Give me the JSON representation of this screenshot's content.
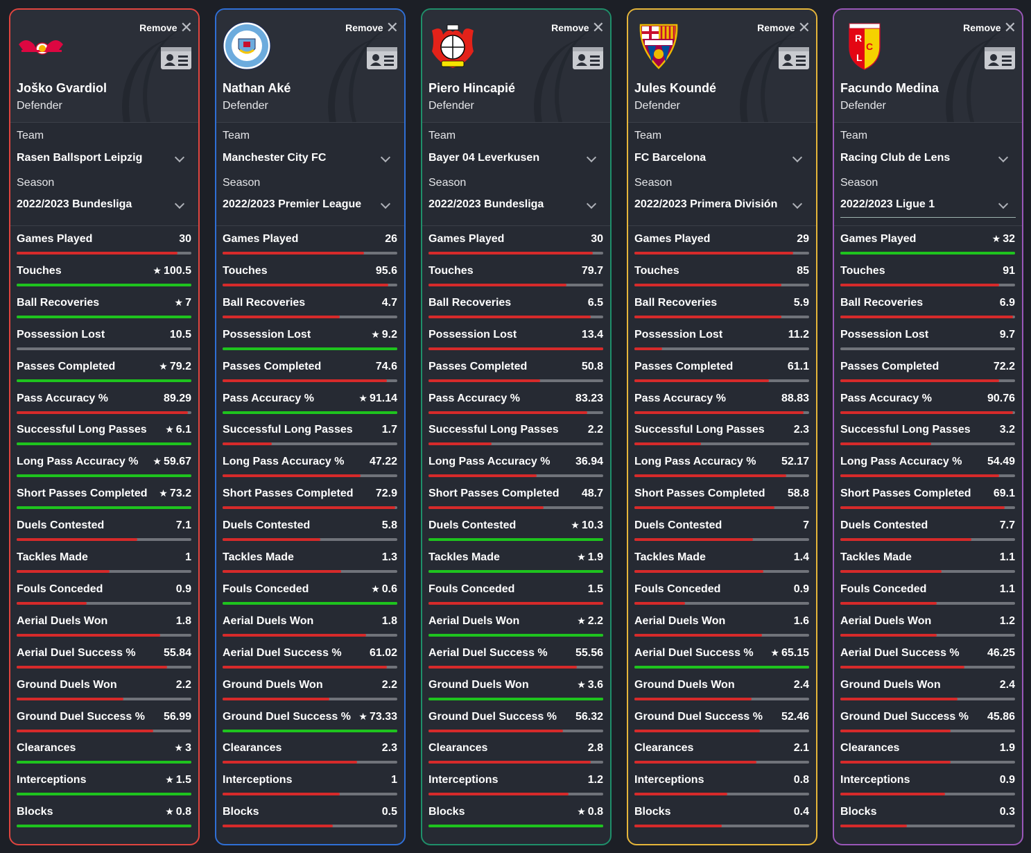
{
  "ui": {
    "remove_label": "Remove",
    "team_label": "Team",
    "season_label": "Season",
    "colors": {
      "best": "#1ec31e",
      "other": "#d62a2a",
      "track": "#70737a"
    }
  },
  "stat_labels": [
    "Games Played",
    "Touches",
    "Ball Recoveries",
    "Possession Lost",
    "Passes Completed",
    "Pass Accuracy %",
    "Successful Long Passes",
    "Long Pass Accuracy %",
    "Short Passes Completed",
    "Duels Contested",
    "Tackles Made",
    "Fouls Conceded",
    "Aerial Duels Won",
    "Aerial Duel Success %",
    "Ground Duels Won",
    "Ground Duel Success %",
    "Clearances",
    "Interceptions",
    "Blocks"
  ],
  "players": [
    {
      "name": "Joško Gvardiol",
      "position": "Defender",
      "team": "Rasen Ballsport Leipzig",
      "season": "2022/2023 Bundesliga",
      "border_color": "#e0453f",
      "logo": "rb-leipzig-logo",
      "stats": [
        {
          "value": "30",
          "star": false,
          "bar": 0.92
        },
        {
          "value": "100.5",
          "star": true,
          "bar": 1.0
        },
        {
          "value": "7",
          "star": true,
          "bar": 1.0
        },
        {
          "value": "10.5",
          "star": false,
          "bar": 0.0
        },
        {
          "value": "79.2",
          "star": true,
          "bar": 1.0
        },
        {
          "value": "89.29",
          "star": false,
          "bar": 0.98
        },
        {
          "value": "6.1",
          "star": true,
          "bar": 1.0
        },
        {
          "value": "59.67",
          "star": true,
          "bar": 1.0
        },
        {
          "value": "73.2",
          "star": true,
          "bar": 1.0
        },
        {
          "value": "7.1",
          "star": false,
          "bar": 0.69
        },
        {
          "value": "1",
          "star": false,
          "bar": 0.53
        },
        {
          "value": "0.9",
          "star": false,
          "bar": 0.4
        },
        {
          "value": "1.8",
          "star": false,
          "bar": 0.82
        },
        {
          "value": "55.84",
          "star": false,
          "bar": 0.86
        },
        {
          "value": "2.2",
          "star": false,
          "bar": 0.61
        },
        {
          "value": "56.99",
          "star": false,
          "bar": 0.78
        },
        {
          "value": "3",
          "star": true,
          "bar": 1.0
        },
        {
          "value": "1.5",
          "star": true,
          "bar": 1.0
        },
        {
          "value": "0.8",
          "star": true,
          "bar": 1.0
        }
      ]
    },
    {
      "name": "Nathan Aké",
      "position": "Defender",
      "team": "Manchester City FC",
      "season": "2022/2023 Premier League",
      "border_color": "#2f6fd6",
      "logo": "manchester-city-logo",
      "stats": [
        {
          "value": "26",
          "star": false,
          "bar": 0.81
        },
        {
          "value": "95.6",
          "star": false,
          "bar": 0.95
        },
        {
          "value": "4.7",
          "star": false,
          "bar": 0.67
        },
        {
          "value": "9.2",
          "star": true,
          "bar": 1.0
        },
        {
          "value": "74.6",
          "star": false,
          "bar": 0.94
        },
        {
          "value": "91.14",
          "star": true,
          "bar": 1.0
        },
        {
          "value": "1.7",
          "star": false,
          "bar": 0.28
        },
        {
          "value": "47.22",
          "star": false,
          "bar": 0.79
        },
        {
          "value": "72.9",
          "star": false,
          "bar": 0.99
        },
        {
          "value": "5.8",
          "star": false,
          "bar": 0.56
        },
        {
          "value": "1.3",
          "star": false,
          "bar": 0.68
        },
        {
          "value": "0.6",
          "star": true,
          "bar": 1.0
        },
        {
          "value": "1.8",
          "star": false,
          "bar": 0.82
        },
        {
          "value": "61.02",
          "star": false,
          "bar": 0.94
        },
        {
          "value": "2.2",
          "star": false,
          "bar": 0.61
        },
        {
          "value": "73.33",
          "star": true,
          "bar": 1.0
        },
        {
          "value": "2.3",
          "star": false,
          "bar": 0.77
        },
        {
          "value": "1",
          "star": false,
          "bar": 0.67
        },
        {
          "value": "0.5",
          "star": false,
          "bar": 0.63
        }
      ]
    },
    {
      "name": "Piero Hincapié",
      "position": "Defender",
      "team": "Bayer 04 Leverkusen",
      "season": "2022/2023 Bundesliga",
      "border_color": "#1f8f6a",
      "logo": "bayer-leverkusen-logo",
      "stats": [
        {
          "value": "30",
          "star": false,
          "bar": 0.94
        },
        {
          "value": "79.7",
          "star": false,
          "bar": 0.79
        },
        {
          "value": "6.5",
          "star": false,
          "bar": 0.93
        },
        {
          "value": "13.4",
          "star": false,
          "bar": 1.0
        },
        {
          "value": "50.8",
          "star": false,
          "bar": 0.64
        },
        {
          "value": "83.23",
          "star": false,
          "bar": 0.91
        },
        {
          "value": "2.2",
          "star": false,
          "bar": 0.36
        },
        {
          "value": "36.94",
          "star": false,
          "bar": 0.62
        },
        {
          "value": "48.7",
          "star": false,
          "bar": 0.66
        },
        {
          "value": "10.3",
          "star": true,
          "bar": 1.0
        },
        {
          "value": "1.9",
          "star": true,
          "bar": 1.0
        },
        {
          "value": "1.5",
          "star": false,
          "bar": 1.0
        },
        {
          "value": "2.2",
          "star": true,
          "bar": 1.0
        },
        {
          "value": "55.56",
          "star": false,
          "bar": 0.85
        },
        {
          "value": "3.6",
          "star": true,
          "bar": 1.0
        },
        {
          "value": "56.32",
          "star": false,
          "bar": 0.77
        },
        {
          "value": "2.8",
          "star": false,
          "bar": 0.93
        },
        {
          "value": "1.2",
          "star": false,
          "bar": 0.8
        },
        {
          "value": "0.8",
          "star": true,
          "bar": 1.0
        }
      ]
    },
    {
      "name": "Jules Koundé",
      "position": "Defender",
      "team": "FC Barcelona",
      "season": "2022/2023 Primera División",
      "border_color": "#e6b63a",
      "logo": "fc-barcelona-logo",
      "stats": [
        {
          "value": "29",
          "star": false,
          "bar": 0.91
        },
        {
          "value": "85",
          "star": false,
          "bar": 0.84
        },
        {
          "value": "5.9",
          "star": false,
          "bar": 0.84
        },
        {
          "value": "11.2",
          "star": false,
          "bar": 0.16
        },
        {
          "value": "61.1",
          "star": false,
          "bar": 0.77
        },
        {
          "value": "88.83",
          "star": false,
          "bar": 0.97
        },
        {
          "value": "2.3",
          "star": false,
          "bar": 0.38
        },
        {
          "value": "52.17",
          "star": false,
          "bar": 0.87
        },
        {
          "value": "58.8",
          "star": false,
          "bar": 0.8
        },
        {
          "value": "7",
          "star": false,
          "bar": 0.68
        },
        {
          "value": "1.4",
          "star": false,
          "bar": 0.74
        },
        {
          "value": "0.9",
          "star": false,
          "bar": 0.29
        },
        {
          "value": "1.6",
          "star": false,
          "bar": 0.73
        },
        {
          "value": "65.15",
          "star": true,
          "bar": 1.0
        },
        {
          "value": "2.4",
          "star": false,
          "bar": 0.67
        },
        {
          "value": "52.46",
          "star": false,
          "bar": 0.72
        },
        {
          "value": "2.1",
          "star": false,
          "bar": 0.7
        },
        {
          "value": "0.8",
          "star": false,
          "bar": 0.53
        },
        {
          "value": "0.4",
          "star": false,
          "bar": 0.5
        }
      ]
    },
    {
      "name": "Facundo Medina",
      "position": "Defender",
      "team": "Racing Club de Lens",
      "season": "2022/2023 Ligue 1",
      "border_color": "#9a57b8",
      "logo": "rc-lens-logo",
      "stats": [
        {
          "value": "32",
          "star": true,
          "bar": 1.0
        },
        {
          "value": "91",
          "star": false,
          "bar": 0.91
        },
        {
          "value": "6.9",
          "star": false,
          "bar": 0.99
        },
        {
          "value": "9.7",
          "star": false,
          "bar": 0.0
        },
        {
          "value": "72.2",
          "star": false,
          "bar": 0.91
        },
        {
          "value": "90.76",
          "star": false,
          "bar": 0.99
        },
        {
          "value": "3.2",
          "star": false,
          "bar": 0.52
        },
        {
          "value": "54.49",
          "star": false,
          "bar": 0.91
        },
        {
          "value": "69.1",
          "star": false,
          "bar": 0.94
        },
        {
          "value": "7.7",
          "star": false,
          "bar": 0.75
        },
        {
          "value": "1.1",
          "star": false,
          "bar": 0.58
        },
        {
          "value": "1.1",
          "star": false,
          "bar": 0.55
        },
        {
          "value": "1.2",
          "star": false,
          "bar": 0.55
        },
        {
          "value": "46.25",
          "star": false,
          "bar": 0.71
        },
        {
          "value": "2.4",
          "star": false,
          "bar": 0.67
        },
        {
          "value": "45.86",
          "star": false,
          "bar": 0.63
        },
        {
          "value": "1.9",
          "star": false,
          "bar": 0.63
        },
        {
          "value": "0.9",
          "star": false,
          "bar": 0.6
        },
        {
          "value": "0.3",
          "star": false,
          "bar": 0.38
        }
      ]
    }
  ]
}
